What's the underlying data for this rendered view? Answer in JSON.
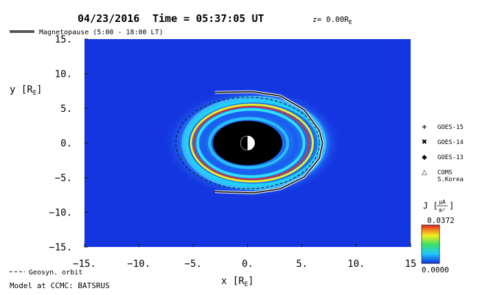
{
  "chart_data": {
    "type": "heatmap",
    "title": {
      "date": "04/23/2016",
      "time_label": "Time = 05:37:05 UT",
      "z_label": "z= 0.00R",
      "z_sub": "E"
    },
    "xlabel": "x [R",
    "xlabel_sub": "E",
    "ylabel": "y [R",
    "ylabel_sub": "E",
    "xlim": [
      -15,
      15
    ],
    "ylim": [
      -15,
      15
    ],
    "x_ticks": [
      {
        "v": -15,
        "label": "-15."
      },
      {
        "v": -10,
        "label": "-10."
      },
      {
        "v": -5,
        "label": "-5."
      },
      {
        "v": 0,
        "label": "0."
      },
      {
        "v": 5,
        "label": "5."
      },
      {
        "v": 10,
        "label": "10."
      },
      {
        "v": 15,
        "label": "15"
      }
    ],
    "y_ticks": [
      {
        "v": 15,
        "label": "15."
      },
      {
        "v": 10,
        "label": "10."
      },
      {
        "v": 5,
        "label": "5."
      },
      {
        "v": 0,
        "label": "0."
      },
      {
        "v": -5,
        "label": "-5."
      },
      {
        "v": -10,
        "label": "-10."
      },
      {
        "v": -15,
        "label": "-15."
      }
    ],
    "colorbar": {
      "label": "J",
      "unit_num": "μA",
      "unit_den": "m²",
      "max_label": "0.0372",
      "min_label": "0.0000",
      "min": 0.0,
      "max": 0.0372
    },
    "magnetopause_legend": "Magnetopause (5:00 - 18:00 LT)",
    "geosync_legend": "Geosyn. orbit",
    "model_label": "Model at CCMC: BATSRUS",
    "markers": [
      {
        "symbol": "+",
        "label": "GOES-15"
      },
      {
        "symbol": "✖",
        "label": "GOES-14"
      },
      {
        "symbol": "◆",
        "label": "GOES-13"
      },
      {
        "symbol": "△",
        "label": "COMS\nS.Korea"
      }
    ],
    "colors": {
      "background": "#1436e0",
      "core": "#000000",
      "ring_outer": "#20d0ff",
      "ring_yellow": "#f0f020",
      "ring_red": "#e03020",
      "magnetopause": "#222222"
    }
  }
}
